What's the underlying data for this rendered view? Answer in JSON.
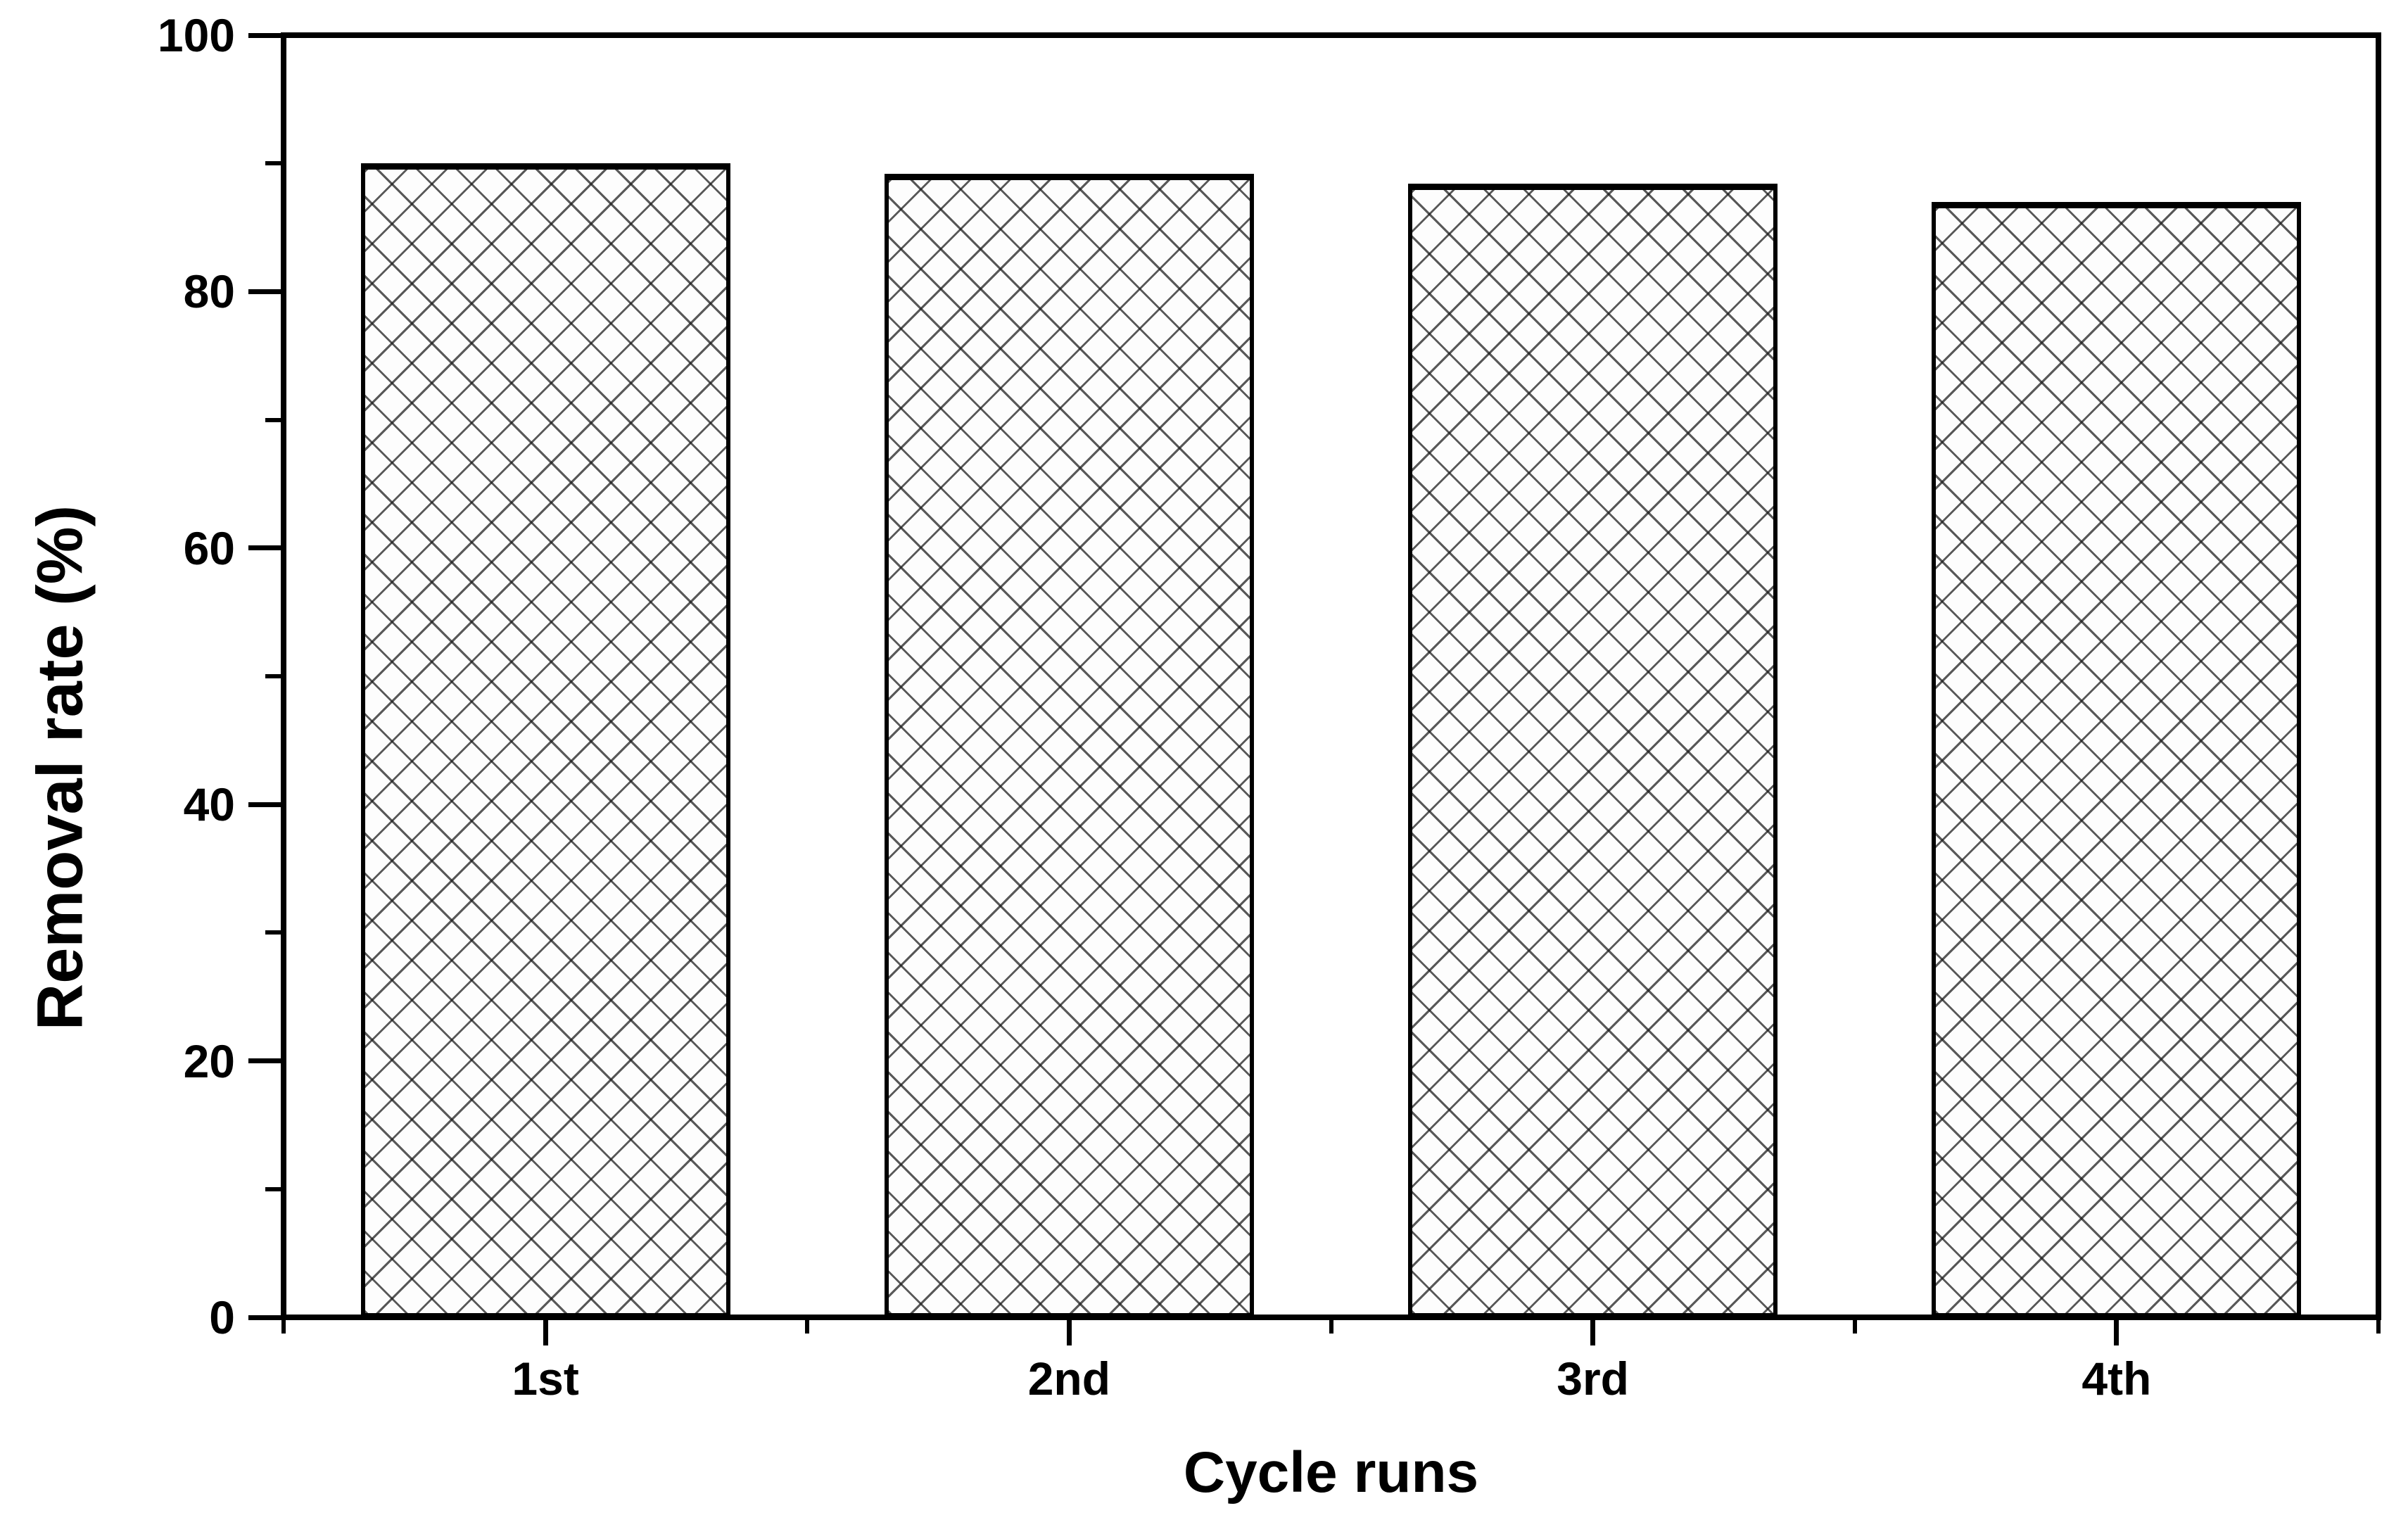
{
  "chart_data": {
    "type": "bar",
    "title": "",
    "xlabel": "Cycle runs",
    "ylabel": "Removal rate (%)",
    "categories": [
      "1st",
      "2nd",
      "3rd",
      "4th"
    ],
    "values": [
      90,
      89.2,
      88.4,
      87
    ],
    "ylim": [
      0,
      100
    ],
    "y_major_step": 20,
    "y_minor_step": 10,
    "y_major_tick_labels": [
      "0",
      "20",
      "40",
      "60",
      "80",
      "100"
    ],
    "grid": false,
    "legend": "none",
    "frame": "full box",
    "bar_fill": "#fdfdfd",
    "bar_pattern": "black diagonal crosshatch",
    "line_color": "#000000",
    "bar_width_fraction": 0.706
  }
}
